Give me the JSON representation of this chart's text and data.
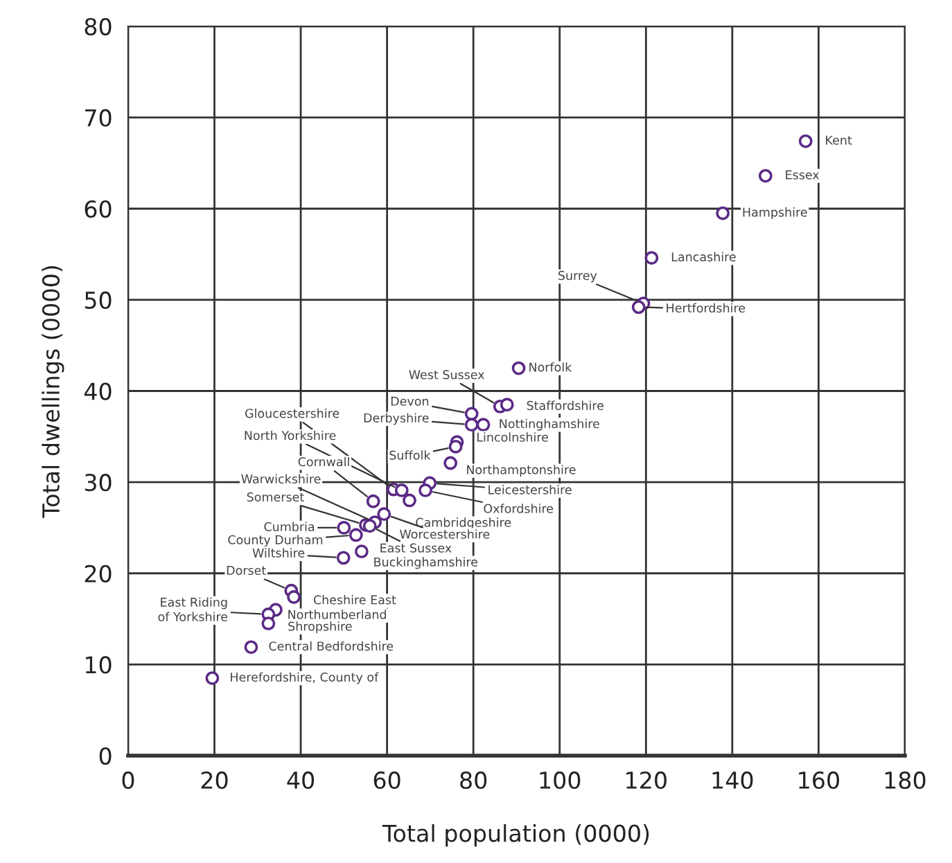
{
  "chart_data": {
    "type": "scatter",
    "xlabel": "Total population (0000)",
    "ylabel": "Total dwellings (0000)",
    "xlim": [
      0,
      180
    ],
    "xticks": [
      0,
      20,
      40,
      60,
      80,
      100,
      120,
      140,
      160,
      180
    ],
    "ylim": [
      0,
      80
    ],
    "yticks": [
      0,
      10,
      20,
      30,
      40,
      50,
      60,
      70,
      80
    ],
    "grid": true,
    "marker": "circle",
    "series": [
      {
        "color": "#5b2a86",
        "x": [
          157.0,
          147.7,
          137.8,
          121.3,
          119.4,
          118.3,
          90.5,
          86.2,
          87.8,
          79.6,
          79.6,
          82.3,
          76.2,
          75.9,
          74.7,
          69.9,
          68.9,
          61.5,
          63.4,
          65.2,
          56.8,
          59.3,
          55.1,
          57.2,
          56.0,
          50.0,
          52.8,
          54.1,
          49.9,
          37.8,
          38.4,
          34.2,
          32.5,
          32.5,
          28.5,
          19.5
        ],
        "values": [
          67.4,
          63.6,
          59.5,
          54.6,
          49.6,
          49.2,
          42.5,
          38.3,
          38.5,
          37.5,
          36.3,
          36.3,
          34.4,
          33.9,
          32.1,
          29.9,
          29.1,
          29.2,
          29.1,
          28.0,
          27.9,
          26.5,
          25.3,
          25.6,
          25.2,
          25.0,
          24.2,
          22.4,
          21.7,
          18.1,
          17.4,
          16.0,
          15.5,
          14.5,
          11.9,
          8.5
        ]
      }
    ],
    "annotations": [
      {
        "text": "Kent",
        "x": 157.0,
        "y": 67.4
      },
      {
        "text": "Essex",
        "x": 147.7,
        "y": 63.6
      },
      {
        "text": "Hampshire",
        "x": 137.8,
        "y": 59.5
      },
      {
        "text": "Lancashire",
        "x": 121.3,
        "y": 54.6
      },
      {
        "text": "Surrey",
        "x": 119.4,
        "y": 49.6
      },
      {
        "text": "Hertfordshire",
        "x": 118.3,
        "y": 49.2
      },
      {
        "text": "Norfolk",
        "x": 90.5,
        "y": 42.5
      },
      {
        "text": "West Sussex",
        "x": 86.2,
        "y": 38.3
      },
      {
        "text": "Staffordshire",
        "x": 87.8,
        "y": 38.5
      },
      {
        "text": "Devon",
        "x": 79.6,
        "y": 37.5
      },
      {
        "text": "Derbyshire",
        "x": 79.6,
        "y": 36.3
      },
      {
        "text": "Nottinghamshire",
        "x": 82.3,
        "y": 36.3
      },
      {
        "text": "Lincolnshire",
        "x": 76.2,
        "y": 34.4
      },
      {
        "text": "Suffolk",
        "x": 75.9,
        "y": 33.9
      },
      {
        "text": "Northamptonshire",
        "x": 74.7,
        "y": 32.1
      },
      {
        "text": "Leicestershire",
        "x": 69.9,
        "y": 29.9
      },
      {
        "text": "Oxfordshire",
        "x": 68.9,
        "y": 29.1
      },
      {
        "text": "Gloucestershire",
        "x": 61.5,
        "y": 29.2
      },
      {
        "text": "North Yorkshire",
        "x": 63.4,
        "y": 29.1
      },
      {
        "text": "Cambridgeshire",
        "x": 65.2,
        "y": 28.0
      },
      {
        "text": "Cornwall",
        "x": 56.8,
        "y": 27.9
      },
      {
        "text": "Worcestershire",
        "x": 59.3,
        "y": 26.5
      },
      {
        "text": "Somerset",
        "x": 55.1,
        "y": 25.3
      },
      {
        "text": "Warwickshire",
        "x": 57.2,
        "y": 25.6
      },
      {
        "text": "East Sussex",
        "x": 56.0,
        "y": 25.2
      },
      {
        "text": "Cumbria",
        "x": 50.0,
        "y": 25.0
      },
      {
        "text": "County Durham",
        "x": 52.8,
        "y": 24.2
      },
      {
        "text": "Buckinghamshire",
        "x": 54.1,
        "y": 22.4
      },
      {
        "text": "Wiltshire",
        "x": 49.9,
        "y": 21.7
      },
      {
        "text": "Dorset",
        "x": 37.8,
        "y": 18.1
      },
      {
        "text": "Cheshire East",
        "x": 38.4,
        "y": 17.4
      },
      {
        "text": "Northumberland",
        "x": 34.2,
        "y": 16.0
      },
      {
        "text": "East Riding\nof Yorkshire",
        "x": 32.5,
        "y": 15.5
      },
      {
        "text": "Shropshire",
        "x": 32.5,
        "y": 14.5
      },
      {
        "text": "Central Bedfordshire",
        "x": 28.5,
        "y": 11.9
      },
      {
        "text": "Herefordshire, County of",
        "x": 19.5,
        "y": 8.5
      }
    ]
  }
}
